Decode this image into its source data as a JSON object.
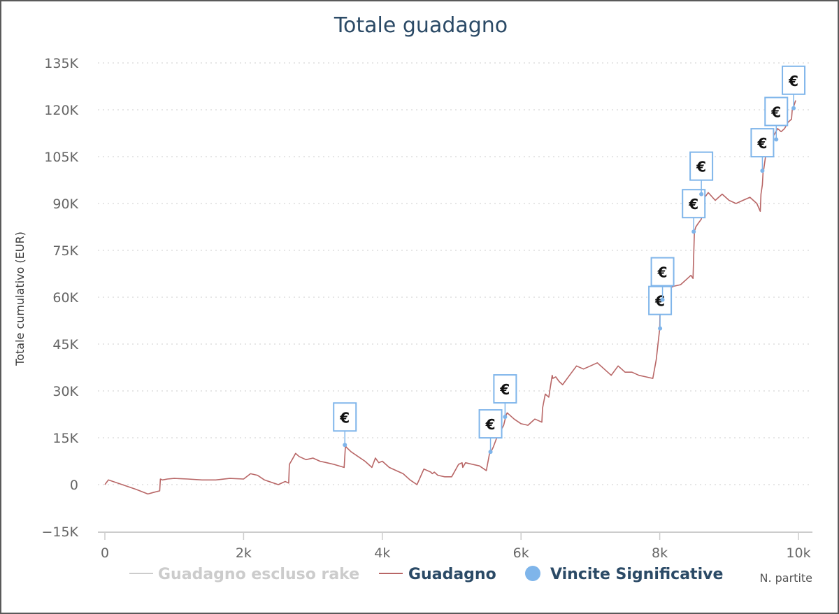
{
  "chart_data": {
    "type": "line",
    "title": "Totale guadagno",
    "ylabel": "Totale cumulativo (EUR)",
    "xlabel": "N. partite",
    "xlim": [
      0,
      10000
    ],
    "ylim": [
      -15000,
      135000
    ],
    "x_ticks": [
      0,
      2000,
      4000,
      6000,
      8000,
      10000
    ],
    "x_tick_labels": [
      "0",
      "2k",
      "4k",
      "6k",
      "8k",
      "10k"
    ],
    "y_ticks": [
      -15000,
      0,
      15000,
      30000,
      45000,
      60000,
      75000,
      90000,
      105000,
      120000,
      135000
    ],
    "y_tick_labels": [
      "−15K",
      "0",
      "15K",
      "30K",
      "45K",
      "60K",
      "75K",
      "90K",
      "105K",
      "120K",
      "135K"
    ],
    "grid": "horizontal dotted",
    "legend_position": "bottom",
    "colors": {
      "line": "#b86666",
      "flag": "#7fb5ea",
      "legend_hidden": "#cccccc",
      "legend_active": "#2b4a66",
      "grid": "#dddddd",
      "axis": "#cccccc"
    },
    "series": [
      {
        "name": "Guadagno escluso rake",
        "visible": false,
        "x": [],
        "y": []
      },
      {
        "name": "Guadagno",
        "visible": true,
        "x": [
          0,
          50,
          250,
          450,
          620,
          700,
          790,
          800,
          830,
          900,
          1000,
          1200,
          1400,
          1600,
          1800,
          2000,
          2100,
          2200,
          2300,
          2500,
          2600,
          2650,
          2660,
          2700,
          2750,
          2800,
          2900,
          3000,
          3100,
          3200,
          3300,
          3450,
          3470,
          3480,
          3550,
          3650,
          3750,
          3850,
          3900,
          3950,
          4000,
          4100,
          4200,
          4300,
          4400,
          4500,
          4600,
          4700,
          4720,
          4750,
          4800,
          4900,
          5000,
          5100,
          5150,
          5160,
          5200,
          5300,
          5400,
          5500,
          5550,
          5555,
          5600,
          5650,
          5700,
          5750,
          5780,
          5790,
          5800,
          5900,
          6000,
          6100,
          6200,
          6300,
          6310,
          6350,
          6400,
          6450,
          6460,
          6500,
          6550,
          6600,
          6700,
          6800,
          6900,
          7000,
          7100,
          7200,
          7300,
          7400,
          7500,
          7600,
          7700,
          7800,
          7900,
          7950,
          8000,
          8005,
          8030,
          8035,
          8080,
          8150,
          8200,
          8300,
          8400,
          8450,
          8480,
          8500,
          8520,
          8550,
          8600,
          8650,
          8700,
          8800,
          8900,
          9000,
          9100,
          9200,
          9300,
          9400,
          9450,
          9460,
          9480,
          9490,
          9500,
          9550,
          9600,
          9650,
          9700,
          9750,
          9800,
          9850,
          9900,
          9910,
          9930,
          9960
        ],
        "y": [
          0,
          1500,
          0,
          -1500,
          -3000,
          -2500,
          -2000,
          1800,
          1500,
          1800,
          2000,
          1800,
          1500,
          1500,
          2000,
          1800,
          3500,
          3000,
          1500,
          0,
          1000,
          500,
          6500,
          8000,
          10000,
          9000,
          8000,
          8500,
          7500,
          7000,
          6500,
          5500,
          12800,
          12000,
          10500,
          9000,
          7500,
          5500,
          8500,
          7000,
          7500,
          5500,
          4500,
          3500,
          1500,
          0,
          5000,
          4000,
          3500,
          4000,
          3000,
          2500,
          2500,
          6500,
          7000,
          5500,
          7000,
          6500,
          6000,
          4500,
          10500,
          10000,
          12000,
          15000,
          17000,
          19000,
          21800,
          22500,
          23000,
          21000,
          19500,
          19000,
          21000,
          20000,
          24500,
          29000,
          28000,
          35000,
          34000,
          34500,
          33000,
          32000,
          35000,
          38000,
          37000,
          38000,
          39000,
          37000,
          35000,
          38000,
          36000,
          36000,
          35000,
          34500,
          34000,
          40000,
          50000,
          57000,
          59000,
          60500,
          60500,
          63000,
          63500,
          64000,
          66000,
          67000,
          66000,
          81000,
          82500,
          83500,
          85000,
          92000,
          93500,
          91000,
          93000,
          91000,
          90000,
          91000,
          92000,
          90000,
          87500,
          93000,
          96000,
          100000,
          101000,
          109000,
          110500,
          112000,
          114000,
          113000,
          114000,
          116000,
          117000,
          120000,
          121000,
          123000
        ]
      },
      {
        "name": "Vincite Significative",
        "visible": true,
        "type": "flags",
        "x": [
          3460,
          5560,
          5770,
          8005,
          8040,
          8490,
          8600,
          9480,
          9680,
          9930
        ],
        "y": [
          12700,
          10500,
          21700,
          50000,
          59200,
          81000,
          93000,
          100500,
          110500,
          120500
        ],
        "labels": [
          "€",
          "€",
          "€",
          "€",
          "€",
          "€",
          "€",
          "€",
          "€",
          "€"
        ]
      }
    ]
  }
}
